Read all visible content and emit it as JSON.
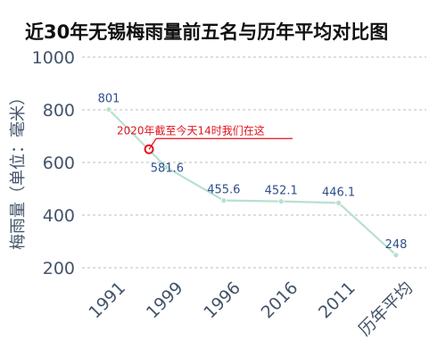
{
  "chart_data": {
    "type": "line",
    "title": "近30年无锡梅雨量前五名与历年平均对比图",
    "xlabel": "",
    "ylabel": "梅雨量（单位：毫米）",
    "categories": [
      "1991",
      "1999",
      "1996",
      "2016",
      "2011",
      "历年平均"
    ],
    "series": [
      {
        "values": [
          801,
          581.6,
          455.6,
          452.1,
          446.1,
          248
        ]
      }
    ],
    "data_labels": [
      "801",
      "581.6",
      "455.6",
      "452.1",
      "446.1",
      "248"
    ],
    "ylim": [
      200,
      1000
    ],
    "y_ticks": [
      "200",
      "400",
      "600",
      "800",
      "1000"
    ],
    "grid": true,
    "legend": "none",
    "annotation": {
      "text": "2020年截至今天14时我们在这",
      "value": 650,
      "between": [
        "1991",
        "1999"
      ]
    },
    "colors": {
      "line": "#b8e0cf",
      "marker": "#b8e0cf",
      "data_label": "#2e4f8a",
      "annotation": "#e0141e",
      "grid": "#c9c9c9",
      "tick_label": "#44546a"
    }
  }
}
